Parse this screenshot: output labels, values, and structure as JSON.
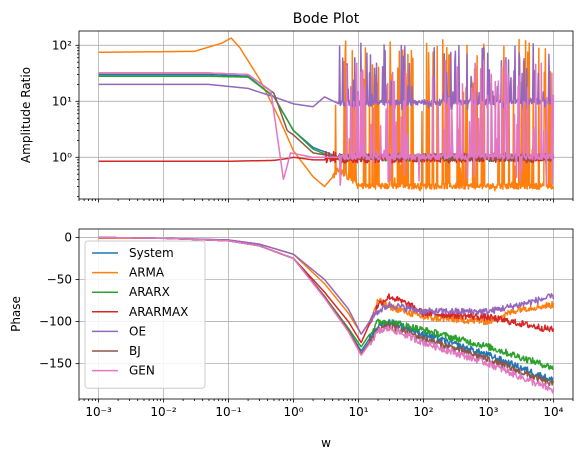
{
  "chart_data": [
    {
      "type": "line",
      "title": "Bode Plot",
      "xlabel": "",
      "ylabel": "Amplitude Ratio",
      "xscale": "log",
      "yscale": "log",
      "xlim": [
        0.0005,
        20000
      ],
      "ylim": [
        0.18,
        180
      ],
      "xticks": [
        0.001,
        0.01,
        0.1,
        1,
        10,
        100,
        1000,
        10000
      ],
      "xtick_labels_visible": false,
      "yticks": [
        1,
        10,
        100
      ],
      "ytick_labels": [
        "10⁰",
        "10¹",
        "10²"
      ],
      "grid": true,
      "series": [
        {
          "name": "System",
          "color": "#1f77b4",
          "profile": [
            [
              0.001,
              30
            ],
            [
              0.05,
              30
            ],
            [
              0.2,
              28
            ],
            [
              0.5,
              12
            ],
            [
              1,
              3
            ],
            [
              2,
              1.5
            ],
            [
              5,
              1.0
            ],
            [
              10,
              1.0
            ],
            [
              10000,
              1.0
            ]
          ],
          "noise": {
            "from": 5,
            "lo": 0.85,
            "hi": 1.15
          }
        },
        {
          "name": "ARMA",
          "color": "#ff7f0e",
          "profile": [
            [
              0.001,
              75
            ],
            [
              0.03,
              78
            ],
            [
              0.08,
              110
            ],
            [
              0.11,
              135
            ],
            [
              0.15,
              90
            ],
            [
              0.3,
              25
            ],
            [
              0.6,
              5
            ],
            [
              1,
              1.3
            ],
            [
              2,
              0.45
            ],
            [
              3,
              0.3
            ],
            [
              5,
              0.6
            ],
            [
              10,
              0.3
            ],
            [
              10000,
              0.3
            ]
          ],
          "noise": {
            "from": 4,
            "lo": 0.25,
            "hi": 130
          }
        },
        {
          "name": "ARARX",
          "color": "#2ca02c",
          "profile": [
            [
              0.001,
              28
            ],
            [
              0.05,
              28
            ],
            [
              0.2,
              27
            ],
            [
              0.5,
              12
            ],
            [
              1,
              3
            ],
            [
              2,
              1.4
            ],
            [
              5,
              0.9
            ],
            [
              10,
              1.0
            ],
            [
              10000,
              1.0
            ]
          ],
          "noise": {
            "from": 5,
            "lo": 0.85,
            "hi": 1.2
          }
        },
        {
          "name": "ARARMAX",
          "color": "#d62728",
          "profile": [
            [
              0.001,
              0.85
            ],
            [
              0.1,
              0.85
            ],
            [
              0.5,
              0.88
            ],
            [
              0.8,
              0.95
            ],
            [
              1,
              1.0
            ],
            [
              2,
              0.9
            ],
            [
              10,
              0.9
            ],
            [
              10000,
              0.95
            ]
          ],
          "noise": {
            "from": 3,
            "lo": 0.8,
            "hi": 1.3
          }
        },
        {
          "name": "OE",
          "color": "#9467bd",
          "profile": [
            [
              0.001,
              20
            ],
            [
              0.05,
              20
            ],
            [
              0.2,
              17
            ],
            [
              0.5,
              12
            ],
            [
              1,
              9
            ],
            [
              2,
              8
            ],
            [
              3,
              12
            ],
            [
              5,
              9
            ],
            [
              10,
              9
            ],
            [
              10000,
              10
            ]
          ],
          "noise": {
            "from": 5,
            "lo": 7,
            "hi": 110
          }
        },
        {
          "name": "BJ",
          "color": "#8c564b",
          "profile": [
            [
              0.001,
              32
            ],
            [
              0.05,
              32
            ],
            [
              0.2,
              30
            ],
            [
              0.5,
              14
            ],
            [
              0.8,
              3
            ],
            [
              1,
              2.5
            ],
            [
              2,
              1.2
            ],
            [
              5,
              1.0
            ],
            [
              10,
              1.0
            ],
            [
              10000,
              1.0
            ]
          ],
          "noise": {
            "from": 5,
            "lo": 0.85,
            "hi": 1.2
          }
        },
        {
          "name": "GEN",
          "color": "#e377c2",
          "profile": [
            [
              0.001,
              32
            ],
            [
              0.05,
              32
            ],
            [
              0.2,
              30
            ],
            [
              0.45,
              15
            ],
            [
              0.7,
              0.4
            ],
            [
              0.9,
              1.2
            ],
            [
              2,
              1.0
            ],
            [
              10,
              1.0
            ],
            [
              10000,
              1.0
            ]
          ],
          "noise": {
            "from": 5,
            "lo": 0.3,
            "hi": 55
          }
        }
      ]
    },
    {
      "type": "line",
      "title": "",
      "xlabel": "w",
      "ylabel": "Phase",
      "xscale": "log",
      "xlim": [
        0.0005,
        20000
      ],
      "ylim": [
        -192,
        10
      ],
      "xticks": [
        0.001,
        0.01,
        0.1,
        1,
        10,
        100,
        1000,
        10000
      ],
      "xtick_labels": [
        "10⁻³",
        "10⁻²",
        "10⁻¹",
        "10⁰",
        "10¹",
        "10²",
        "10³",
        "10⁴"
      ],
      "yticks": [
        0,
        -50,
        -100,
        -150
      ],
      "ytick_labels": [
        "0",
        "−50",
        "−100",
        "−150"
      ],
      "grid": true,
      "legend": "upper left",
      "series": [
        {
          "name": "System",
          "color": "#1f77b4",
          "points": [
            [
              0.001,
              0
            ],
            [
              0.01,
              -1
            ],
            [
              0.1,
              -4
            ],
            [
              0.3,
              -10
            ],
            [
              1,
              -25
            ],
            [
              3,
              -70
            ],
            [
              7,
              -110
            ],
            [
              11,
              -135
            ],
            [
              20,
              -105
            ],
            [
              30,
              -100
            ],
            [
              100,
              -115
            ],
            [
              1000,
              -140
            ],
            [
              10000,
              -170
            ]
          ]
        },
        {
          "name": "ARMA",
          "color": "#ff7f0e",
          "points": [
            [
              0.001,
              -1
            ],
            [
              0.01,
              -1
            ],
            [
              0.1,
              -3
            ],
            [
              0.3,
              -8
            ],
            [
              1,
              -20
            ],
            [
              3,
              -55
            ],
            [
              7,
              -90
            ],
            [
              11,
              -115
            ],
            [
              15,
              -100
            ],
            [
              20,
              -75
            ],
            [
              30,
              -82
            ],
            [
              100,
              -95
            ],
            [
              1000,
              -100
            ],
            [
              3000,
              -85
            ],
            [
              10000,
              -80
            ]
          ]
        },
        {
          "name": "ARARX",
          "color": "#2ca02c",
          "points": [
            [
              0.001,
              0
            ],
            [
              0.01,
              -1
            ],
            [
              0.1,
              -4
            ],
            [
              0.3,
              -10
            ],
            [
              1,
              -25
            ],
            [
              3,
              -70
            ],
            [
              7,
              -108
            ],
            [
              11,
              -130
            ],
            [
              20,
              -100
            ],
            [
              30,
              -100
            ],
            [
              100,
              -110
            ],
            [
              1000,
              -130
            ],
            [
              10000,
              -155
            ]
          ]
        },
        {
          "name": "ARARMAX",
          "color": "#d62728",
          "points": [
            [
              0.001,
              0
            ],
            [
              0.01,
              -1
            ],
            [
              0.1,
              -4
            ],
            [
              0.3,
              -10
            ],
            [
              1,
              -25
            ],
            [
              3,
              -65
            ],
            [
              7,
              -100
            ],
            [
              11,
              -125
            ],
            [
              20,
              -80
            ],
            [
              30,
              -70
            ],
            [
              60,
              -80
            ],
            [
              100,
              -90
            ],
            [
              1000,
              -95
            ],
            [
              10000,
              -110
            ]
          ]
        },
        {
          "name": "OE",
          "color": "#9467bd",
          "points": [
            [
              0.001,
              0
            ],
            [
              0.01,
              -1
            ],
            [
              0.1,
              -3
            ],
            [
              0.3,
              -8
            ],
            [
              1,
              -20
            ],
            [
              3,
              -50
            ],
            [
              7,
              -85
            ],
            [
              11,
              -115
            ],
            [
              18,
              -90
            ],
            [
              30,
              -80
            ],
            [
              100,
              -88
            ],
            [
              1000,
              -88
            ],
            [
              3000,
              -80
            ],
            [
              10000,
              -70
            ]
          ]
        },
        {
          "name": "BJ",
          "color": "#8c564b",
          "points": [
            [
              0.001,
              0
            ],
            [
              0.01,
              -1
            ],
            [
              0.1,
              -4
            ],
            [
              0.3,
              -10
            ],
            [
              1,
              -25
            ],
            [
              3,
              -70
            ],
            [
              7,
              -110
            ],
            [
              11,
              -138
            ],
            [
              20,
              -110
            ],
            [
              30,
              -105
            ],
            [
              100,
              -120
            ],
            [
              1000,
              -145
            ],
            [
              10000,
              -175
            ]
          ]
        },
        {
          "name": "GEN",
          "color": "#e377c2",
          "points": [
            [
              0.001,
              0
            ],
            [
              0.01,
              -1
            ],
            [
              0.1,
              -4
            ],
            [
              0.3,
              -10
            ],
            [
              1,
              -25
            ],
            [
              3,
              -72
            ],
            [
              7,
              -112
            ],
            [
              11,
              -140
            ],
            [
              20,
              -112
            ],
            [
              30,
              -108
            ],
            [
              100,
              -125
            ],
            [
              1000,
              -150
            ],
            [
              10000,
              -182
            ]
          ]
        }
      ]
    }
  ]
}
